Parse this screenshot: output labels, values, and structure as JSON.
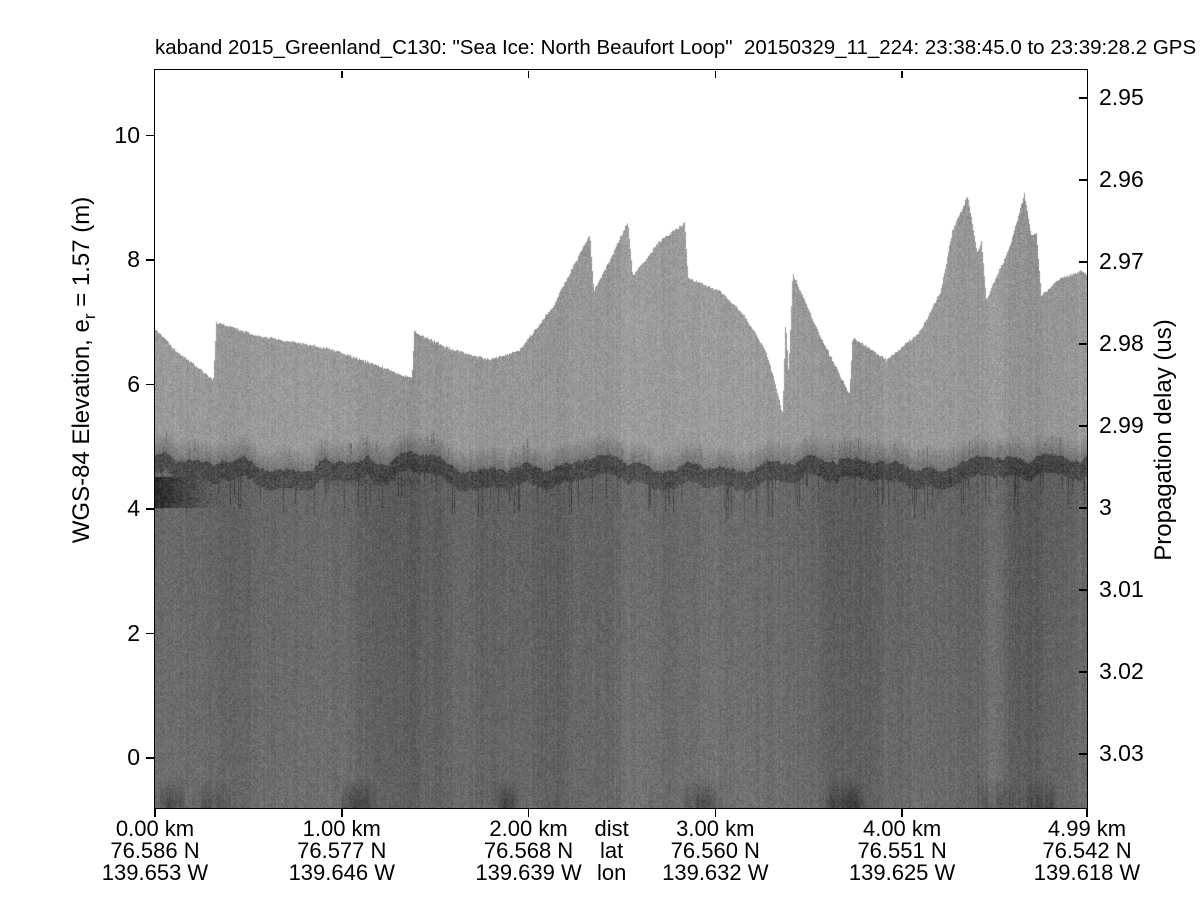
{
  "title": "kaband 2015_Greenland_C130: \"Sea Ice: North Beaufort Loop\"  20150329_11_224: 23:38:45.0 to 23:39:28.2 GPS",
  "left_axis": {
    "label_pre": "WGS-84 Elevation, e",
    "label_sub": "r",
    "label_post": " = 1.57 (m)"
  },
  "right_axis": {
    "label": "Propagation delay (us)"
  },
  "chart_data": {
    "type": "heatmap",
    "title": "kaband 2015_Greenland_C130: \"Sea Ice: North Beaufort Loop\"  20150329_11_224: 23:38:45.0 to 23:39:28.2 GPS",
    "ylabel_left": "WGS-84 Elevation, e_r = 1.57 (m)",
    "ylabel_right": "Propagation delay (us)",
    "elev_ticks": [
      "10",
      "8",
      "6",
      "4",
      "2",
      "0"
    ],
    "elev_tick_values": [
      10,
      8,
      6,
      4,
      2,
      0
    ],
    "elev_ylim": [
      -0.805,
      11.05
    ],
    "delay_ticks": [
      "2.95",
      "2.96",
      "2.97",
      "2.98",
      "2.99",
      "3",
      "3.01",
      "3.02",
      "3.03"
    ],
    "delay_tick_values": [
      2.95,
      2.96,
      2.97,
      2.98,
      2.99,
      3.0,
      3.01,
      3.02,
      3.03
    ],
    "delay_ylim": [
      2.9466,
      3.0366
    ],
    "x_range_km": [
      0,
      4.99
    ],
    "km_ticks": [
      0,
      1,
      2,
      3,
      4,
      4.99
    ],
    "top_km_ticks": [
      1,
      2,
      3,
      4
    ],
    "grid": false,
    "x_columns": [
      {
        "km": 0.0,
        "dist": "0.00 km",
        "lat": "76.586 N",
        "lon": "139.653 W"
      },
      {
        "km": 1.0,
        "dist": "1.00 km",
        "lat": "76.577 N",
        "lon": "139.646 W"
      },
      {
        "km": 2.0,
        "dist": "2.00 km",
        "lat": "76.568 N",
        "lon": "139.639 W"
      },
      {
        "km": 3.0,
        "dist": "3.00 km",
        "lat": "76.560 N",
        "lon": "139.632 W"
      },
      {
        "km": 4.0,
        "dist": "4.00 km",
        "lat": "76.551 N",
        "lon": "139.625 W"
      },
      {
        "km": 4.99,
        "dist": "4.99 km",
        "lat": "76.542 N",
        "lon": "139.618 W"
      }
    ],
    "legend_labels": {
      "dist": "dist",
      "lat": "lat",
      "lon": "lon"
    },
    "legend_frac": 0.49,
    "surface_elev_m": 4.6,
    "envelope_km_elev": [
      [
        0.0,
        6.9
      ],
      [
        0.11,
        6.55
      ],
      [
        0.31,
        6.08
      ],
      [
        0.327,
        7.0
      ],
      [
        0.56,
        6.78
      ],
      [
        0.94,
        6.58
      ],
      [
        1.2,
        6.3
      ],
      [
        1.375,
        6.1
      ],
      [
        1.388,
        6.85
      ],
      [
        1.58,
        6.58
      ],
      [
        1.79,
        6.4
      ],
      [
        1.95,
        6.55
      ],
      [
        2.13,
        7.25
      ],
      [
        2.24,
        7.9
      ],
      [
        2.329,
        8.42
      ],
      [
        2.35,
        7.5
      ],
      [
        2.436,
        8.0
      ],
      [
        2.532,
        8.63
      ],
      [
        2.559,
        7.75
      ],
      [
        2.7,
        8.3
      ],
      [
        2.838,
        8.6
      ],
      [
        2.855,
        7.72
      ],
      [
        3.03,
        7.5
      ],
      [
        3.16,
        7.1
      ],
      [
        3.27,
        6.55
      ],
      [
        3.32,
        6.05
      ],
      [
        3.362,
        5.53
      ],
      [
        3.378,
        7.03
      ],
      [
        3.394,
        6.2
      ],
      [
        3.416,
        7.8
      ],
      [
        3.56,
        6.8
      ],
      [
        3.721,
        5.85
      ],
      [
        3.737,
        6.76
      ],
      [
        3.92,
        6.4
      ],
      [
        4.1,
        6.86
      ],
      [
        4.21,
        7.5
      ],
      [
        4.272,
        8.47
      ],
      [
        4.353,
        9.03
      ],
      [
        4.406,
        8.12
      ],
      [
        4.428,
        8.3
      ],
      [
        4.454,
        7.37
      ],
      [
        4.578,
        8.2
      ],
      [
        4.658,
        9.06
      ],
      [
        4.695,
        8.39
      ],
      [
        4.722,
        8.44
      ],
      [
        4.749,
        7.43
      ],
      [
        4.845,
        7.7
      ],
      [
        4.963,
        7.83
      ],
      [
        4.99,
        7.78
      ]
    ],
    "light_dark_bands": [
      [
        1.55,
        1.74,
        7
      ],
      [
        2.46,
        2.72,
        9
      ],
      [
        4.42,
        4.56,
        13
      ],
      [
        4.9,
        4.99,
        6
      ],
      [
        1.05,
        1.45,
        -6
      ],
      [
        2.0,
        2.24,
        -7
      ],
      [
        3.55,
        3.9,
        -7
      ],
      [
        4.57,
        4.77,
        -6
      ],
      [
        0.3,
        0.55,
        -4
      ],
      [
        2.9,
        3.05,
        4
      ]
    ],
    "colors": {
      "background": "#ffffff",
      "above_surface_gray": "#989898",
      "below_surface_gray": "#656565",
      "surface_line_gray": "#262626",
      "frame": "#000000"
    },
    "noise_seed": 7
  }
}
